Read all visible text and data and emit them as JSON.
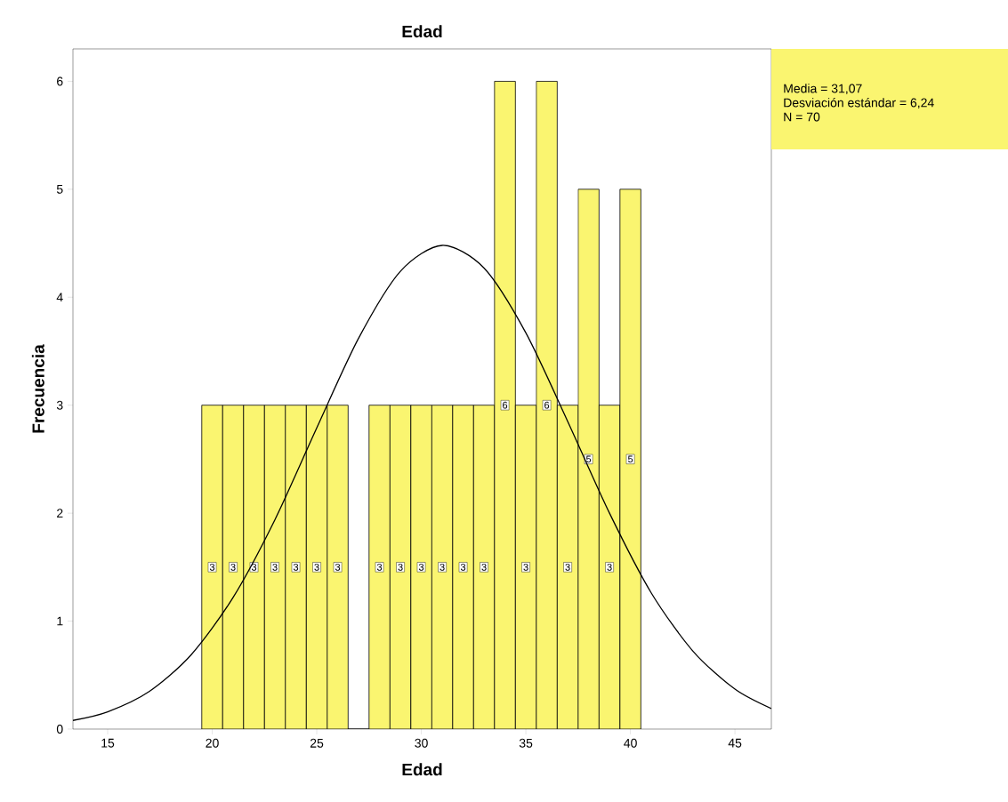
{
  "chart_data": {
    "type": "histogram",
    "title": "Edad",
    "xlabel": "Edad",
    "ylabel": "Frecuencia",
    "bins": [
      19.5,
      20.5,
      21.5,
      22.5,
      23.5,
      24.5,
      25.5,
      26.5,
      27.5,
      28.5,
      29.5,
      30.5,
      31.5,
      32.5,
      33.5,
      34.5,
      35.5,
      36.5,
      37.5,
      38.5,
      39.5,
      40.5
    ],
    "values": [
      3,
      3,
      3,
      3,
      3,
      3,
      3,
      0,
      3,
      3,
      3,
      3,
      3,
      3,
      6,
      3,
      6,
      3,
      5,
      3,
      5
    ],
    "value_labels": [
      "3",
      "3",
      "3",
      "3",
      "3",
      "3",
      "3",
      null,
      "3",
      "3",
      "3",
      "3",
      "3",
      "3",
      "6",
      "3",
      "6",
      "3",
      "5",
      "3",
      "5"
    ],
    "color": "#faf570",
    "series": [
      {
        "type": "line",
        "color": "#000000",
        "x": [
          13.34,
          15,
          17,
          19,
          21,
          23,
          25,
          27,
          29,
          31,
          33,
          35,
          37,
          39,
          41,
          43,
          45,
          46.74
        ],
        "values": [
          0.08,
          0.16,
          0.35,
          0.69,
          1.22,
          1.94,
          2.79,
          3.62,
          4.24,
          4.48,
          4.27,
          3.67,
          2.85,
          2.0,
          1.26,
          0.72,
          0.37,
          0.19
        ]
      }
    ],
    "annotations": [
      "Media = 31,07",
      "Desviación estándar = 6,24",
      "N = 70"
    ],
    "xlim": [
      13.34,
      46.74
    ],
    "ylim": [
      0,
      6.3
    ],
    "xticks": [
      15,
      20,
      25,
      30,
      35,
      40,
      45
    ],
    "yticks": [
      0,
      1,
      2,
      3,
      4,
      5,
      6
    ]
  }
}
